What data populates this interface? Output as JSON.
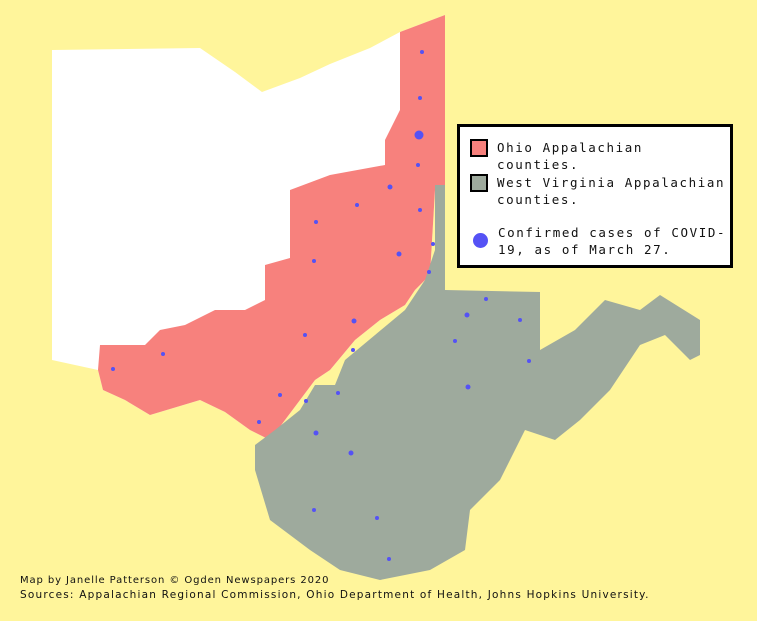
{
  "colors": {
    "background": "#fff59b",
    "ohio_other": "#ffffff",
    "ohio_appalachian": "#f7817d",
    "wv_appalachian": "#9eaa9d",
    "covid_dot": "#5552f5"
  },
  "legend": {
    "items": [
      {
        "label": "Ohio Appalachian counties.",
        "symbol": "pink-square"
      },
      {
        "label": "West Virginia Appalachian counties.",
        "symbol": "gray-square"
      },
      {
        "label": "Confirmed cases of COVID-19, as of March 27.",
        "symbol": "blue-dot"
      }
    ]
  },
  "footer": {
    "credit": "Map by Janelle Patterson © Ogden Newspapers 2020",
    "sources": "Sources: Appalachian Regional Commission, Ohio Department of Health, Johns Hopkins University."
  }
}
